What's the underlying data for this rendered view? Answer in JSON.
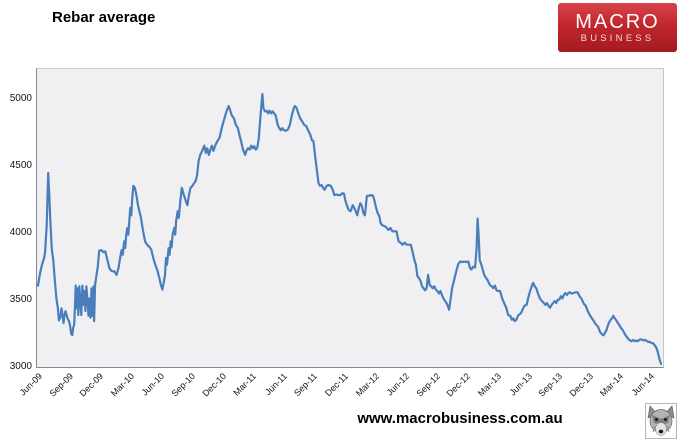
{
  "header": {
    "title": "Rebar average"
  },
  "logo": {
    "line1": "MACRO",
    "line2": "BUSINESS",
    "bg_color": "#b5262b",
    "text_color": "#ffffff"
  },
  "footer": {
    "website": "www.macrobusiness.com.au",
    "wolf_icon": "wolf-head"
  },
  "chart_data": {
    "type": "line",
    "title": "Rebar average",
    "series_name": "Rebar average",
    "xlabel": "",
    "ylabel": "",
    "x_unit": "months since Jun-2009",
    "x_tick_labels": [
      "Jun-09",
      "Sep-09",
      "Dec-09",
      "Mar-10",
      "Jun-10",
      "Sep-10",
      "Dec-10",
      "Mar-11",
      "Jun-11",
      "Sep-11",
      "Dec-11",
      "Mar-12",
      "Jun-12",
      "Sep-12",
      "Dec-12",
      "Mar-13",
      "Jun-13",
      "Sep-13",
      "Dec-13",
      "Mar-14",
      "Jun-14"
    ],
    "x_tick_months": [
      0,
      3,
      6,
      9,
      12,
      15,
      18,
      21,
      24,
      27,
      30,
      33,
      36,
      39,
      42,
      45,
      48,
      51,
      54,
      57,
      60
    ],
    "y_ticks": [
      3000,
      3500,
      4000,
      4500,
      5000
    ],
    "ylim": [
      3000,
      5230
    ],
    "xlim_months": [
      0,
      61.3
    ],
    "grid": false,
    "legend": "none",
    "line_color": "#4a7ebb",
    "plot_bg": "#f0f0f3",
    "points": [
      [
        0,
        3600
      ],
      [
        0.2,
        3690
      ],
      [
        0.4,
        3760
      ],
      [
        0.6,
        3805
      ],
      [
        0.7,
        3850
      ],
      [
        0.85,
        4050
      ],
      [
        1.0,
        4440
      ],
      [
        1.1,
        4290
      ],
      [
        1.2,
        4105
      ],
      [
        1.35,
        3870
      ],
      [
        1.5,
        3790
      ],
      [
        1.65,
        3640
      ],
      [
        1.8,
        3505
      ],
      [
        1.95,
        3430
      ],
      [
        2.05,
        3340
      ],
      [
        2.2,
        3365
      ],
      [
        2.3,
        3430
      ],
      [
        2.4,
        3380
      ],
      [
        2.5,
        3320
      ],
      [
        2.6,
        3380
      ],
      [
        2.7,
        3410
      ],
      [
        2.8,
        3380
      ],
      [
        2.95,
        3345
      ],
      [
        3.05,
        3335
      ],
      [
        3.15,
        3300
      ],
      [
        3.25,
        3245
      ],
      [
        3.35,
        3230
      ],
      [
        3.45,
        3285
      ],
      [
        3.55,
        3310
      ],
      [
        3.65,
        3485
      ],
      [
        3.7,
        3600
      ],
      [
        3.8,
        3430
      ],
      [
        3.85,
        3580
      ],
      [
        3.95,
        3380
      ],
      [
        4.05,
        3595
      ],
      [
        4.15,
        3485
      ],
      [
        4.25,
        3380
      ],
      [
        4.35,
        3600
      ],
      [
        4.45,
        3455
      ],
      [
        4.55,
        3560
      ],
      [
        4.65,
        3410
      ],
      [
        4.75,
        3595
      ],
      [
        4.85,
        3485
      ],
      [
        4.95,
        3375
      ],
      [
        5.05,
        3505
      ],
      [
        5.15,
        3360
      ],
      [
        5.25,
        3580
      ],
      [
        5.35,
        3375
      ],
      [
        5.45,
        3595
      ],
      [
        5.5,
        3335
      ],
      [
        5.6,
        3605
      ],
      [
        5.7,
        3660
      ],
      [
        5.85,
        3735
      ],
      [
        6.0,
        3860
      ],
      [
        6.2,
        3865
      ],
      [
        6.4,
        3850
      ],
      [
        6.6,
        3855
      ],
      [
        6.8,
        3790
      ],
      [
        7.0,
        3730
      ],
      [
        7.2,
        3710
      ],
      [
        7.5,
        3705
      ],
      [
        7.7,
        3680
      ],
      [
        7.9,
        3735
      ],
      [
        8.05,
        3805
      ],
      [
        8.2,
        3865
      ],
      [
        8.3,
        3830
      ],
      [
        8.45,
        3930
      ],
      [
        8.55,
        3880
      ],
      [
        8.65,
        3980
      ],
      [
        8.75,
        4030
      ],
      [
        8.85,
        3980
      ],
      [
        8.95,
        4080
      ],
      [
        9.05,
        4180
      ],
      [
        9.15,
        4125
      ],
      [
        9.25,
        4260
      ],
      [
        9.35,
        4345
      ],
      [
        9.5,
        4330
      ],
      [
        9.65,
        4275
      ],
      [
        9.8,
        4200
      ],
      [
        10.1,
        4105
      ],
      [
        10.3,
        4005
      ],
      [
        10.5,
        3930
      ],
      [
        10.7,
        3905
      ],
      [
        10.9,
        3890
      ],
      [
        11.1,
        3870
      ],
      [
        11.3,
        3805
      ],
      [
        11.5,
        3755
      ],
      [
        11.7,
        3715
      ],
      [
        11.9,
        3655
      ],
      [
        12.05,
        3605
      ],
      [
        12.2,
        3570
      ],
      [
        12.35,
        3635
      ],
      [
        12.45,
        3680
      ],
      [
        12.55,
        3805
      ],
      [
        12.65,
        3755
      ],
      [
        12.8,
        3880
      ],
      [
        12.9,
        3830
      ],
      [
        13.0,
        3930
      ],
      [
        13.1,
        3885
      ],
      [
        13.2,
        3980
      ],
      [
        13.35,
        4030
      ],
      [
        13.45,
        3980
      ],
      [
        13.55,
        4085
      ],
      [
        13.7,
        4155
      ],
      [
        13.8,
        4105
      ],
      [
        13.95,
        4230
      ],
      [
        14.1,
        4330
      ],
      [
        14.3,
        4275
      ],
      [
        14.5,
        4230
      ],
      [
        14.65,
        4200
      ],
      [
        14.8,
        4275
      ],
      [
        14.95,
        4330
      ],
      [
        15.15,
        4345
      ],
      [
        15.3,
        4365
      ],
      [
        15.45,
        4380
      ],
      [
        15.6,
        4425
      ],
      [
        15.75,
        4530
      ],
      [
        15.9,
        4575
      ],
      [
        16.1,
        4605
      ],
      [
        16.3,
        4645
      ],
      [
        16.45,
        4590
      ],
      [
        16.6,
        4625
      ],
      [
        16.75,
        4575
      ],
      [
        16.9,
        4615
      ],
      [
        17.05,
        4645
      ],
      [
        17.2,
        4605
      ],
      [
        17.4,
        4650
      ],
      [
        17.6,
        4680
      ],
      [
        17.8,
        4705
      ],
      [
        17.95,
        4755
      ],
      [
        18.1,
        4800
      ],
      [
        18.3,
        4855
      ],
      [
        18.5,
        4905
      ],
      [
        18.7,
        4940
      ],
      [
        18.85,
        4905
      ],
      [
        19.0,
        4870
      ],
      [
        19.2,
        4850
      ],
      [
        19.4,
        4800
      ],
      [
        19.6,
        4775
      ],
      [
        19.75,
        4725
      ],
      [
        19.9,
        4680
      ],
      [
        20.1,
        4615
      ],
      [
        20.3,
        4575
      ],
      [
        20.45,
        4610
      ],
      [
        20.6,
        4625
      ],
      [
        20.75,
        4615
      ],
      [
        20.9,
        4645
      ],
      [
        21.05,
        4625
      ],
      [
        21.2,
        4640
      ],
      [
        21.35,
        4615
      ],
      [
        21.5,
        4630
      ],
      [
        21.65,
        4700
      ],
      [
        21.8,
        4860
      ],
      [
        21.95,
        4990
      ],
      [
        22.0,
        5030
      ],
      [
        22.1,
        4925
      ],
      [
        22.25,
        4900
      ],
      [
        22.4,
        4905
      ],
      [
        22.55,
        4885
      ],
      [
        22.7,
        4905
      ],
      [
        22.85,
        4885
      ],
      [
        23.0,
        4900
      ],
      [
        23.15,
        4885
      ],
      [
        23.3,
        4870
      ],
      [
        23.5,
        4800
      ],
      [
        23.65,
        4775
      ],
      [
        23.8,
        4760
      ],
      [
        23.95,
        4775
      ],
      [
        24.1,
        4760
      ],
      [
        24.3,
        4755
      ],
      [
        24.5,
        4765
      ],
      [
        24.7,
        4800
      ],
      [
        24.9,
        4875
      ],
      [
        25.1,
        4930
      ],
      [
        25.2,
        4940
      ],
      [
        25.35,
        4925
      ],
      [
        25.5,
        4890
      ],
      [
        25.7,
        4850
      ],
      [
        25.9,
        4825
      ],
      [
        26.1,
        4800
      ],
      [
        26.3,
        4790
      ],
      [
        26.5,
        4755
      ],
      [
        26.7,
        4725
      ],
      [
        26.85,
        4685
      ],
      [
        27.0,
        4680
      ],
      [
        27.2,
        4550
      ],
      [
        27.35,
        4455
      ],
      [
        27.5,
        4365
      ],
      [
        27.65,
        4345
      ],
      [
        27.8,
        4350
      ],
      [
        27.95,
        4330
      ],
      [
        28.1,
        4315
      ],
      [
        28.3,
        4345
      ],
      [
        28.5,
        4350
      ],
      [
        28.7,
        4345
      ],
      [
        28.9,
        4315
      ],
      [
        29.05,
        4275
      ],
      [
        29.25,
        4280
      ],
      [
        29.45,
        4275
      ],
      [
        29.65,
        4275
      ],
      [
        29.85,
        4290
      ],
      [
        30.0,
        4285
      ],
      [
        30.15,
        4230
      ],
      [
        30.3,
        4195
      ],
      [
        30.45,
        4165
      ],
      [
        30.65,
        4155
      ],
      [
        30.85,
        4200
      ],
      [
        31.0,
        4180
      ],
      [
        31.15,
        4155
      ],
      [
        31.3,
        4125
      ],
      [
        31.45,
        4180
      ],
      [
        31.6,
        4215
      ],
      [
        31.75,
        4195
      ],
      [
        31.9,
        4140
      ],
      [
        32.05,
        4125
      ],
      [
        32.25,
        4270
      ],
      [
        32.45,
        4270
      ],
      [
        32.65,
        4275
      ],
      [
        32.85,
        4270
      ],
      [
        33.0,
        4230
      ],
      [
        33.15,
        4180
      ],
      [
        33.3,
        4140
      ],
      [
        33.45,
        4120
      ],
      [
        33.6,
        4065
      ],
      [
        33.75,
        4050
      ],
      [
        33.95,
        4045
      ],
      [
        34.15,
        4035
      ],
      [
        34.35,
        4015
      ],
      [
        34.55,
        4030
      ],
      [
        34.75,
        4005
      ],
      [
        34.95,
        4005
      ],
      [
        35.15,
        4005
      ],
      [
        35.35,
        3930
      ],
      [
        35.55,
        3920
      ],
      [
        35.75,
        3905
      ],
      [
        35.95,
        3920
      ],
      [
        36.15,
        3905
      ],
      [
        36.35,
        3905
      ],
      [
        36.55,
        3905
      ],
      [
        36.75,
        3845
      ],
      [
        36.9,
        3790
      ],
      [
        37.05,
        3755
      ],
      [
        37.2,
        3670
      ],
      [
        37.35,
        3655
      ],
      [
        37.5,
        3635
      ],
      [
        37.65,
        3595
      ],
      [
        37.8,
        3580
      ],
      [
        37.95,
        3565
      ],
      [
        38.1,
        3580
      ],
      [
        38.25,
        3680
      ],
      [
        38.4,
        3605
      ],
      [
        38.55,
        3595
      ],
      [
        38.7,
        3580
      ],
      [
        38.85,
        3595
      ],
      [
        39.0,
        3570
      ],
      [
        39.15,
        3560
      ],
      [
        39.3,
        3540
      ],
      [
        39.45,
        3560
      ],
      [
        39.6,
        3530
      ],
      [
        39.75,
        3505
      ],
      [
        39.9,
        3485
      ],
      [
        40.05,
        3470
      ],
      [
        40.2,
        3445
      ],
      [
        40.3,
        3420
      ],
      [
        40.45,
        3500
      ],
      [
        40.6,
        3580
      ],
      [
        40.8,
        3645
      ],
      [
        41.0,
        3705
      ],
      [
        41.2,
        3760
      ],
      [
        41.4,
        3780
      ],
      [
        41.6,
        3775
      ],
      [
        41.8,
        3780
      ],
      [
        42.0,
        3775
      ],
      [
        42.2,
        3780
      ],
      [
        42.35,
        3730
      ],
      [
        42.5,
        3720
      ],
      [
        42.65,
        3740
      ],
      [
        42.85,
        3735
      ],
      [
        43.0,
        3880
      ],
      [
        43.1,
        4100
      ],
      [
        43.2,
        3980
      ],
      [
        43.3,
        3790
      ],
      [
        43.45,
        3760
      ],
      [
        43.6,
        3720
      ],
      [
        43.75,
        3680
      ],
      [
        43.9,
        3660
      ],
      [
        44.05,
        3645
      ],
      [
        44.2,
        3620
      ],
      [
        44.35,
        3600
      ],
      [
        44.5,
        3595
      ],
      [
        44.65,
        3580
      ],
      [
        44.8,
        3600
      ],
      [
        44.95,
        3565
      ],
      [
        45.1,
        3560
      ],
      [
        45.3,
        3560
      ],
      [
        45.5,
        3505
      ],
      [
        45.7,
        3470
      ],
      [
        45.9,
        3435
      ],
      [
        46.1,
        3380
      ],
      [
        46.3,
        3375
      ],
      [
        46.45,
        3345
      ],
      [
        46.6,
        3355
      ],
      [
        46.75,
        3335
      ],
      [
        46.9,
        3345
      ],
      [
        47.05,
        3375
      ],
      [
        47.2,
        3385
      ],
      [
        47.35,
        3395
      ],
      [
        47.5,
        3420
      ],
      [
        47.7,
        3450
      ],
      [
        47.9,
        3455
      ],
      [
        48.05,
        3505
      ],
      [
        48.25,
        3560
      ],
      [
        48.45,
        3605
      ],
      [
        48.55,
        3620
      ],
      [
        48.7,
        3595
      ],
      [
        48.85,
        3580
      ],
      [
        49.0,
        3545
      ],
      [
        49.2,
        3505
      ],
      [
        49.4,
        3485
      ],
      [
        49.6,
        3470
      ],
      [
        49.75,
        3455
      ],
      [
        49.9,
        3470
      ],
      [
        50.05,
        3450
      ],
      [
        50.2,
        3435
      ],
      [
        50.35,
        3455
      ],
      [
        50.5,
        3470
      ],
      [
        50.65,
        3485
      ],
      [
        50.8,
        3470
      ],
      [
        50.95,
        3495
      ],
      [
        51.1,
        3495
      ],
      [
        51.25,
        3520
      ],
      [
        51.4,
        3505
      ],
      [
        51.55,
        3530
      ],
      [
        51.7,
        3545
      ],
      [
        51.85,
        3530
      ],
      [
        52.0,
        3545
      ],
      [
        52.15,
        3550
      ],
      [
        52.3,
        3540
      ],
      [
        52.5,
        3545
      ],
      [
        52.7,
        3550
      ],
      [
        52.9,
        3550
      ],
      [
        53.1,
        3520
      ],
      [
        53.3,
        3500
      ],
      [
        53.5,
        3465
      ],
      [
        53.7,
        3450
      ],
      [
        53.9,
        3410
      ],
      [
        54.1,
        3380
      ],
      [
        54.3,
        3355
      ],
      [
        54.5,
        3335
      ],
      [
        54.7,
        3310
      ],
      [
        54.9,
        3295
      ],
      [
        55.1,
        3255
      ],
      [
        55.3,
        3235
      ],
      [
        55.45,
        3230
      ],
      [
        55.6,
        3250
      ],
      [
        55.75,
        3270
      ],
      [
        55.9,
        3310
      ],
      [
        56.1,
        3340
      ],
      [
        56.3,
        3360
      ],
      [
        56.4,
        3375
      ],
      [
        56.55,
        3355
      ],
      [
        56.7,
        3340
      ],
      [
        56.85,
        3320
      ],
      [
        57.0,
        3305
      ],
      [
        57.15,
        3285
      ],
      [
        57.3,
        3270
      ],
      [
        57.45,
        3250
      ],
      [
        57.6,
        3230
      ],
      [
        57.75,
        3215
      ],
      [
        57.9,
        3200
      ],
      [
        58.05,
        3190
      ],
      [
        58.2,
        3185
      ],
      [
        58.35,
        3195
      ],
      [
        58.5,
        3185
      ],
      [
        58.65,
        3190
      ],
      [
        58.8,
        3185
      ],
      [
        58.95,
        3195
      ],
      [
        59.1,
        3200
      ],
      [
        59.25,
        3195
      ],
      [
        59.4,
        3190
      ],
      [
        59.55,
        3195
      ],
      [
        59.7,
        3185
      ],
      [
        59.85,
        3180
      ],
      [
        60.0,
        3180
      ],
      [
        60.15,
        3170
      ],
      [
        60.3,
        3170
      ],
      [
        60.45,
        3155
      ],
      [
        60.6,
        3140
      ],
      [
        60.75,
        3110
      ],
      [
        60.85,
        3075
      ],
      [
        60.95,
        3045
      ],
      [
        61.1,
        3015
      ]
    ]
  }
}
